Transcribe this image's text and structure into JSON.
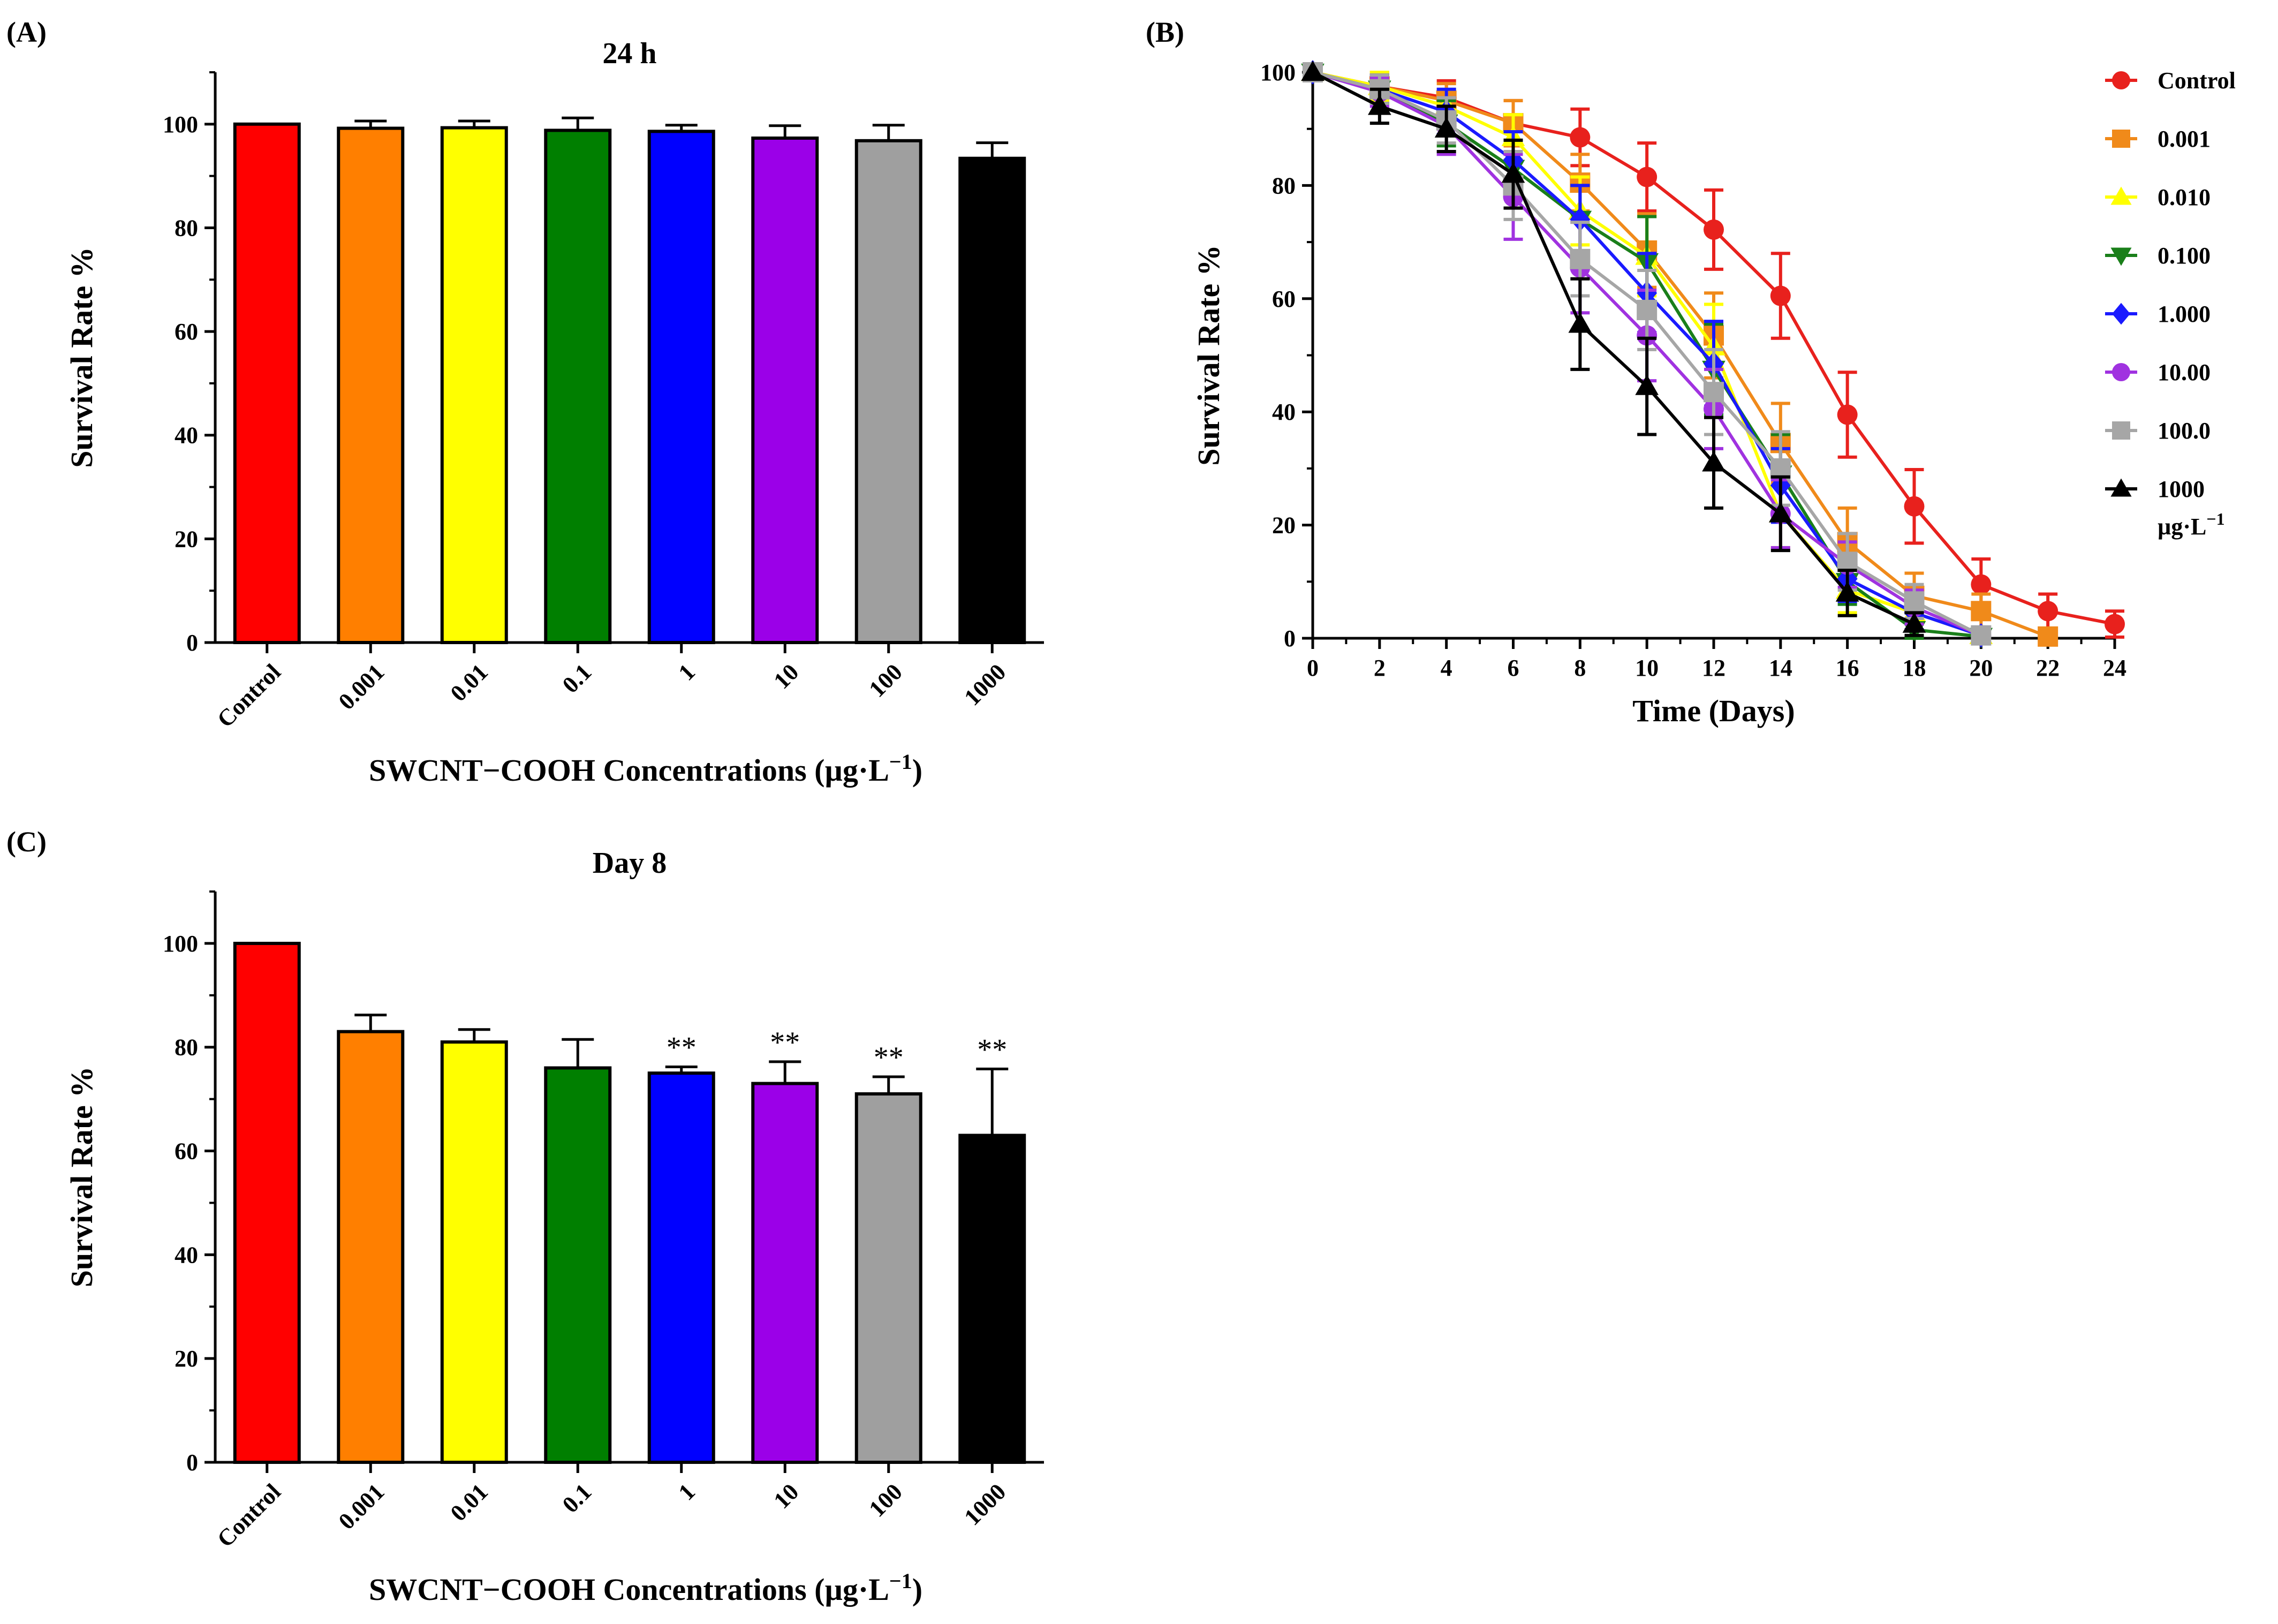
{
  "chart_data": [
    {
      "panel": "(A)",
      "type": "bar",
      "title": "24 h",
      "xlabel": "SWCNT−COOH Concentrations (µg·L",
      "xlabel_sup": "−1",
      "xlabel_end": ")",
      "ylabel": "Survival Rate %",
      "ylim": [
        0,
        110
      ],
      "yticks": [
        0,
        20,
        40,
        60,
        80,
        100
      ],
      "categories": [
        "Control",
        "0.001",
        "0.01",
        "0.1",
        "1",
        "10",
        "100",
        "1000"
      ],
      "values": [
        100,
        99.2,
        99.3,
        98.8,
        98.6,
        97.3,
        96.8,
        93.4
      ],
      "errors": [
        0,
        1.4,
        1.3,
        2.4,
        1.2,
        2.4,
        3.0,
        3.0
      ],
      "colors": [
        "#ff0000",
        "#ff7f00",
        "#ffff00",
        "#007f00",
        "#0000ff",
        "#9b00e8",
        "#9f9f9f",
        "#000000"
      ],
      "annotations": [
        "",
        "",
        "",
        "",
        "",
        "",
        "",
        ""
      ]
    },
    {
      "panel": "(B)",
      "type": "line",
      "xlabel": "Time (Days)",
      "ylabel": "Survival Rate %",
      "xlim": [
        0,
        24
      ],
      "ylim": [
        0,
        100
      ],
      "xticks": [
        0,
        2,
        4,
        6,
        8,
        10,
        12,
        14,
        16,
        18,
        20,
        22,
        24
      ],
      "yticks": [
        0,
        20,
        40,
        60,
        80,
        100
      ],
      "legend_unit": "µg·L",
      "legend_unit_sup": "−1",
      "series": [
        {
          "name": "Control",
          "color": "#e8211d",
          "marker": "circle",
          "x": [
            0,
            2,
            4,
            6,
            8,
            10,
            12,
            14,
            16,
            18,
            20,
            22,
            24
          ],
          "y": [
            100,
            97.5,
            95.5,
            91,
            88.5,
            81.5,
            72.2,
            60.5,
            39.5,
            23.3,
            9.5,
            4.8,
            2.5
          ],
          "err": [
            0,
            2,
            3,
            4,
            5,
            6,
            7,
            7.5,
            7.5,
            6.5,
            4.5,
            3,
            2.3
          ]
        },
        {
          "name": "0.001",
          "color": "#f08a1a",
          "marker": "square",
          "x": [
            0,
            2,
            4,
            6,
            8,
            10,
            12,
            14,
            16,
            18,
            20,
            22
          ],
          "y": [
            100,
            97.5,
            95,
            91,
            80.5,
            68.5,
            53.5,
            34.5,
            17,
            7.5,
            4.8,
            0.3
          ],
          "err": [
            0,
            2.5,
            3,
            4,
            5,
            6.5,
            7.5,
            7,
            6,
            4,
            3,
            0.8
          ]
        },
        {
          "name": "0.010",
          "color": "#ffff00",
          "marker": "triangle-up",
          "x": [
            0,
            2,
            4,
            6,
            8,
            10,
            12,
            14,
            16,
            18,
            20
          ],
          "y": [
            100,
            97.5,
            94,
            88.5,
            75.5,
            67.5,
            51.5,
            22,
            8.5,
            4.5,
            0.5
          ],
          "err": [
            0,
            2.5,
            3,
            4,
            6,
            7,
            7.5,
            6,
            4,
            3,
            1
          ]
        },
        {
          "name": "0.100",
          "color": "#1a7f1a",
          "marker": "triangle-down",
          "x": [
            0,
            2,
            4,
            6,
            8,
            10,
            12,
            14,
            16,
            18,
            20
          ],
          "y": [
            100,
            97,
            91,
            83,
            74,
            66.5,
            47.5,
            29,
            10,
            1.5,
            0.3
          ],
          "err": [
            0,
            2.5,
            4,
            5,
            6,
            8,
            8,
            7,
            4,
            2,
            0.8
          ]
        },
        {
          "name": "1.000",
          "color": "#1a1aff",
          "marker": "diamond",
          "x": [
            0,
            2,
            4,
            6,
            8,
            10,
            12,
            14,
            16,
            18,
            20
          ],
          "y": [
            100,
            97,
            93,
            84.5,
            74,
            61,
            48.5,
            27,
            10.5,
            4.5,
            0.5
          ],
          "err": [
            0,
            2.5,
            4,
            5,
            6,
            7,
            7.5,
            6.5,
            4,
            3,
            1
          ]
        },
        {
          "name": "10.00",
          "color": "#a032e0",
          "marker": "circle",
          "x": [
            0,
            2,
            4,
            6,
            8,
            10,
            12,
            14,
            16,
            18,
            20
          ],
          "y": [
            100,
            96.5,
            90.5,
            78,
            65.5,
            53.5,
            40.5,
            22,
            13,
            5.5,
            0.5
          ],
          "err": [
            0,
            2.5,
            5,
            7.5,
            8,
            8,
            7,
            6,
            4,
            3,
            1
          ]
        },
        {
          "name": "100.0",
          "color": "#a6a6a6",
          "marker": "square",
          "x": [
            0,
            2,
            4,
            6,
            8,
            10,
            12,
            14,
            16,
            18,
            20
          ],
          "y": [
            100,
            97,
            91.5,
            80,
            67,
            58,
            43.5,
            30,
            13.5,
            6.5,
            0.5
          ],
          "err": [
            0,
            2.5,
            4,
            6,
            6.5,
            7,
            7.5,
            6.5,
            5,
            3,
            1
          ]
        },
        {
          "name": "1000",
          "color": "#000000",
          "marker": "triangle-up",
          "x": [
            0,
            2,
            4,
            6,
            8,
            10,
            12,
            14,
            16,
            18
          ],
          "y": [
            100,
            94,
            90,
            82,
            55.5,
            44.5,
            31,
            22,
            8,
            2.5
          ],
          "err": [
            0,
            3,
            4,
            6,
            8,
            8.5,
            8,
            6.5,
            4,
            2
          ]
        }
      ]
    },
    {
      "panel": "(C)",
      "type": "bar",
      "title": "Day 8",
      "xlabel": "SWCNT−COOH Concentrations (µg·L",
      "xlabel_sup": "−1",
      "xlabel_end": ")",
      "ylabel": "Survival Rate %",
      "ylim": [
        0,
        110
      ],
      "yticks": [
        0,
        20,
        40,
        60,
        80,
        100
      ],
      "categories": [
        "Control",
        "0.001",
        "0.01",
        "0.1",
        "1",
        "10",
        "100",
        "1000"
      ],
      "values": [
        100,
        83,
        81,
        76,
        75,
        73,
        71,
        63
      ],
      "errors": [
        0,
        3.2,
        2.4,
        5.5,
        1.2,
        4.2,
        3.3,
        12.8
      ],
      "colors": [
        "#ff0000",
        "#ff7f00",
        "#ffff00",
        "#007f00",
        "#0000ff",
        "#9b00e8",
        "#9f9f9f",
        "#000000"
      ],
      "annotations": [
        "",
        "",
        "",
        "",
        "**",
        "**",
        "**",
        "**"
      ]
    }
  ]
}
